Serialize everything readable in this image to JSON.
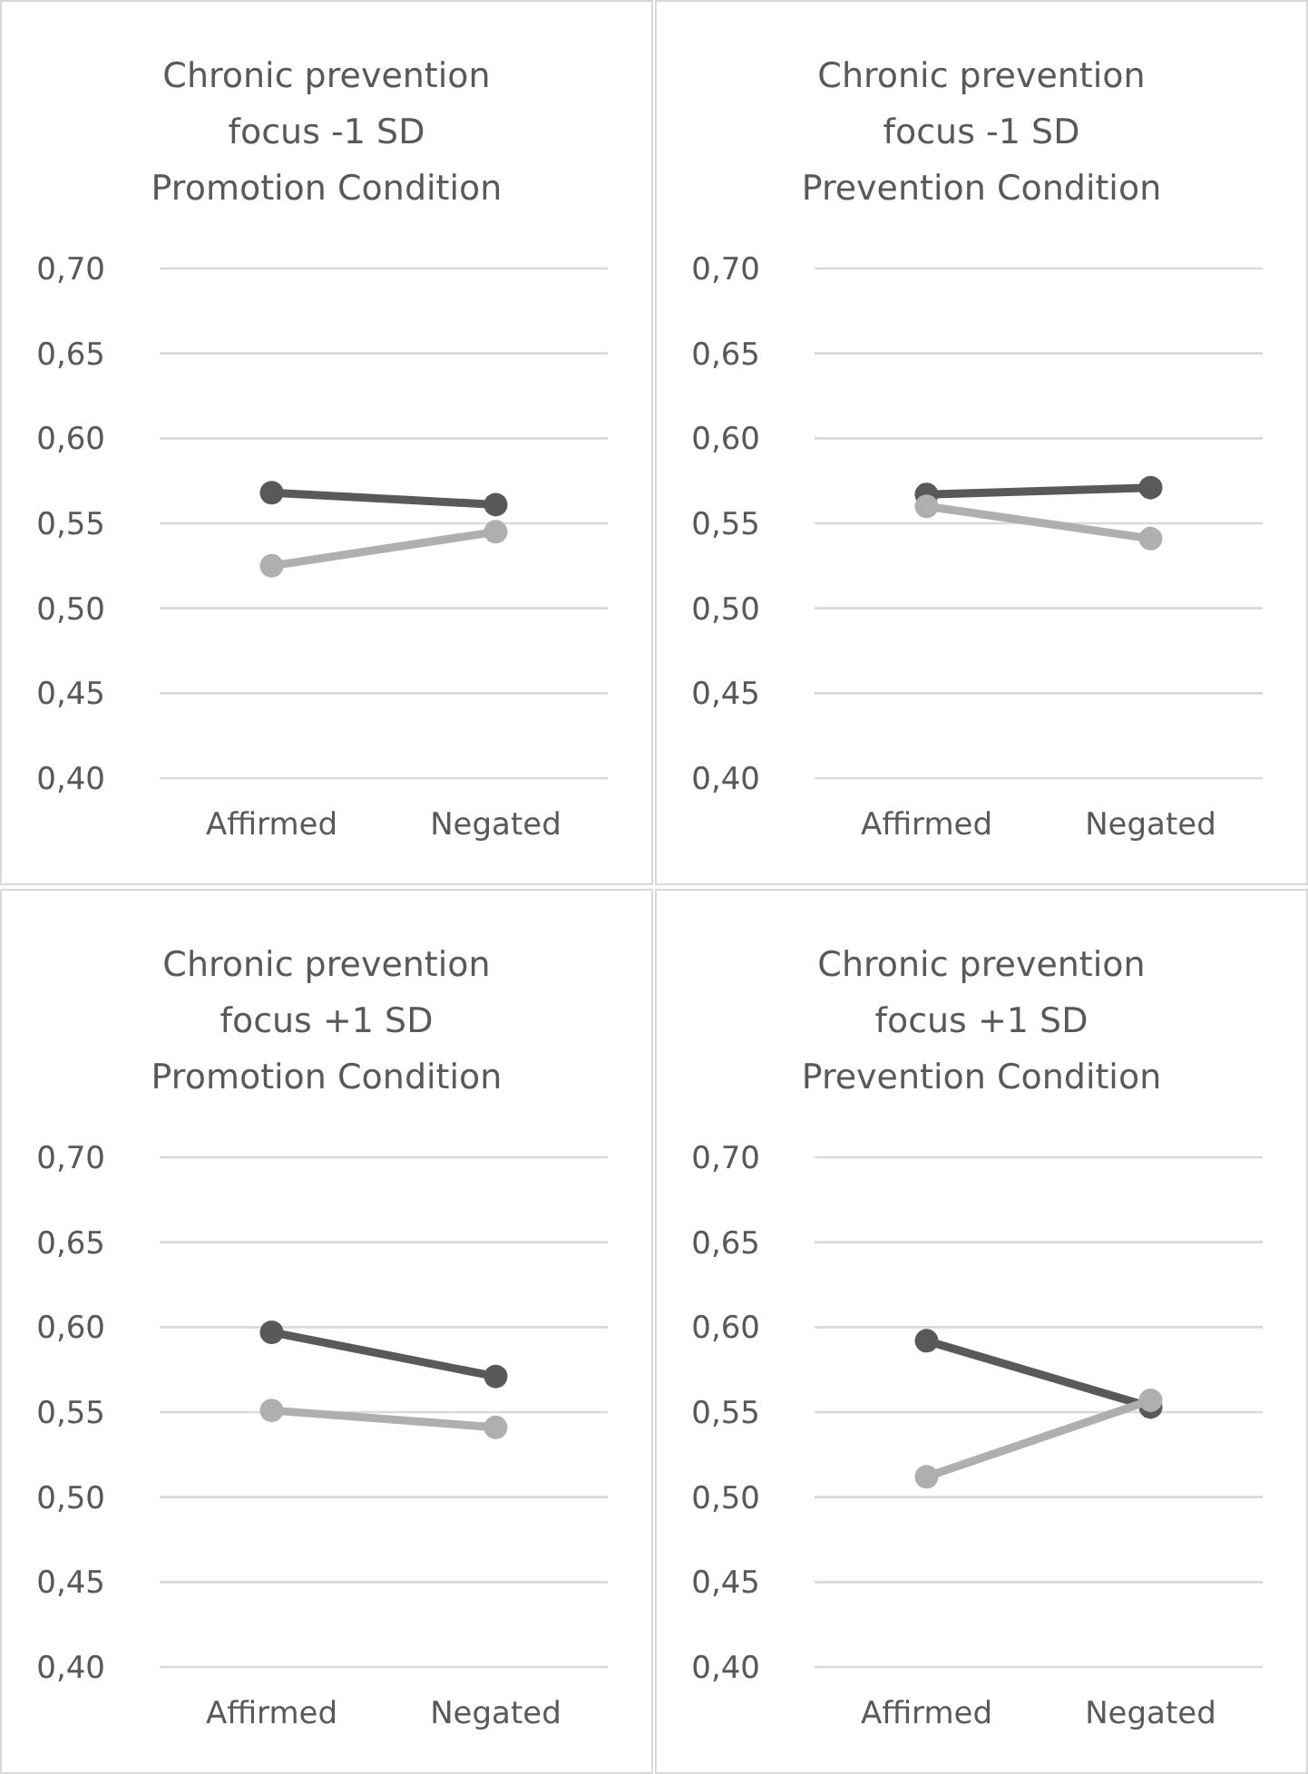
{
  "chart_data": [
    {
      "type": "line",
      "title": "Chronic prevention focus -1 SD Promotion Condition",
      "categories": [
        "Affirmed",
        "Negated"
      ],
      "series": [
        {
          "color": "#595959",
          "values": [
            0.568,
            0.561
          ]
        },
        {
          "color": "#afafaf",
          "values": [
            0.525,
            0.545
          ]
        }
      ],
      "ylim": [
        0.4,
        0.7
      ],
      "yticks": [
        {
          "value": 0.4,
          "label": "0,40"
        },
        {
          "value": 0.45,
          "label": "0,45"
        },
        {
          "value": 0.5,
          "label": "0,50"
        },
        {
          "value": 0.55,
          "label": "0,55"
        },
        {
          "value": 0.6,
          "label": "0,60"
        },
        {
          "value": 0.65,
          "label": "0,65"
        },
        {
          "value": 0.7,
          "label": "0,70"
        }
      ],
      "grid": "y",
      "marker": "circle"
    },
    {
      "type": "line",
      "title": "Chronic prevention focus -1 SD Prevention Condition",
      "categories": [
        "Affirmed",
        "Negated"
      ],
      "series": [
        {
          "color": "#595959",
          "values": [
            0.567,
            0.571
          ]
        },
        {
          "color": "#afafaf",
          "values": [
            0.56,
            0.541
          ]
        }
      ],
      "ylim": [
        0.4,
        0.7
      ],
      "yticks": [
        {
          "value": 0.4,
          "label": "0,40"
        },
        {
          "value": 0.45,
          "label": "0,45"
        },
        {
          "value": 0.5,
          "label": "0,50"
        },
        {
          "value": 0.55,
          "label": "0,55"
        },
        {
          "value": 0.6,
          "label": "0,60"
        },
        {
          "value": 0.65,
          "label": "0,65"
        },
        {
          "value": 0.7,
          "label": "0,70"
        }
      ],
      "grid": "y",
      "marker": "circle"
    },
    {
      "type": "line",
      "title": "Chronic prevention focus +1 SD Promotion Condition",
      "categories": [
        "Affirmed",
        "Negated"
      ],
      "series": [
        {
          "color": "#595959",
          "values": [
            0.597,
            0.571
          ]
        },
        {
          "color": "#afafaf",
          "values": [
            0.551,
            0.541
          ]
        }
      ],
      "ylim": [
        0.4,
        0.7
      ],
      "yticks": [
        {
          "value": 0.4,
          "label": "0,40"
        },
        {
          "value": 0.45,
          "label": "0,45"
        },
        {
          "value": 0.5,
          "label": "0,50"
        },
        {
          "value": 0.55,
          "label": "0,55"
        },
        {
          "value": 0.6,
          "label": "0,60"
        },
        {
          "value": 0.65,
          "label": "0,65"
        },
        {
          "value": 0.7,
          "label": "0,70"
        }
      ],
      "grid": "y",
      "marker": "circle"
    },
    {
      "type": "line",
      "title": "Chronic prevention focus +1 SD Prevention Condition",
      "categories": [
        "Affirmed",
        "Negated"
      ],
      "series": [
        {
          "color": "#595959",
          "values": [
            0.592,
            0.553
          ]
        },
        {
          "color": "#afafaf",
          "values": [
            0.512,
            0.557
          ]
        }
      ],
      "ylim": [
        0.4,
        0.7
      ],
      "yticks": [
        {
          "value": 0.4,
          "label": "0,40"
        },
        {
          "value": 0.45,
          "label": "0,45"
        },
        {
          "value": 0.5,
          "label": "0,50"
        },
        {
          "value": 0.55,
          "label": "0,55"
        },
        {
          "value": 0.6,
          "label": "0,60"
        },
        {
          "value": 0.65,
          "label": "0,65"
        },
        {
          "value": 0.7,
          "label": "0,70"
        }
      ],
      "grid": "y",
      "marker": "circle"
    }
  ]
}
